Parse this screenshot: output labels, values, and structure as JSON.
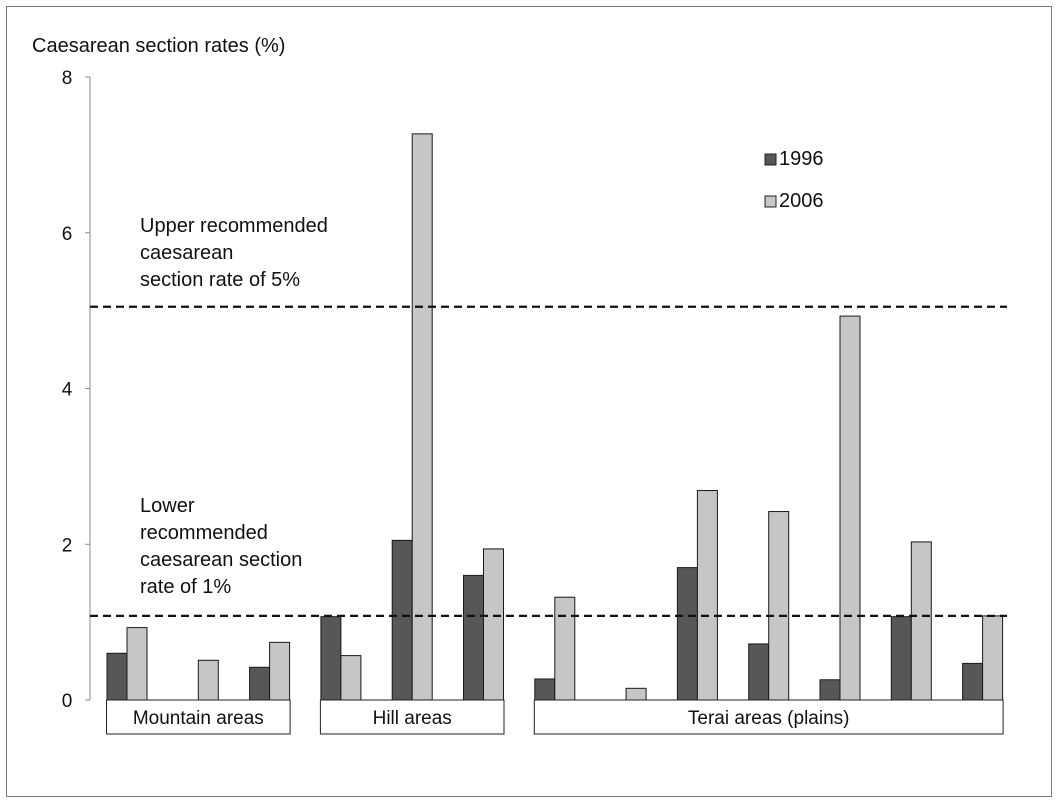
{
  "chart_data": {
    "type": "bar",
    "ylabel": "Caesarean section rates (%)",
    "ylim": [
      0,
      8
    ],
    "yticks": [
      "0",
      "2",
      "4",
      "6",
      "8"
    ],
    "grid": false,
    "legend_position": "top-right",
    "series": [
      {
        "name": "1996",
        "color": "#575757",
        "values": [
          0.6,
          null,
          0.42,
          1.07,
          2.05,
          1.6,
          0.27,
          null,
          1.7,
          0.72,
          0.26,
          1.07,
          0.47
        ]
      },
      {
        "name": "2006",
        "color": "#c6c6c6",
        "values": [
          0.93,
          0.51,
          0.74,
          0.57,
          7.27,
          1.94,
          1.32,
          0.15,
          2.69,
          2.42,
          4.93,
          2.03,
          1.08
        ]
      }
    ],
    "groups": [
      {
        "label": "Mountain areas",
        "count": 3
      },
      {
        "label": "Hill areas",
        "count": 3
      },
      {
        "label": "Terai areas (plains)",
        "count": 7
      }
    ],
    "reference_lines": [
      {
        "value": 5.05,
        "label_lines": [
          "Upper recommended",
          "caesarean",
          "section rate of 5%"
        ]
      },
      {
        "value": 1.08,
        "label_lines": [
          "Lower",
          "recommended",
          "caesarean section",
          "rate of 1%"
        ]
      }
    ]
  }
}
